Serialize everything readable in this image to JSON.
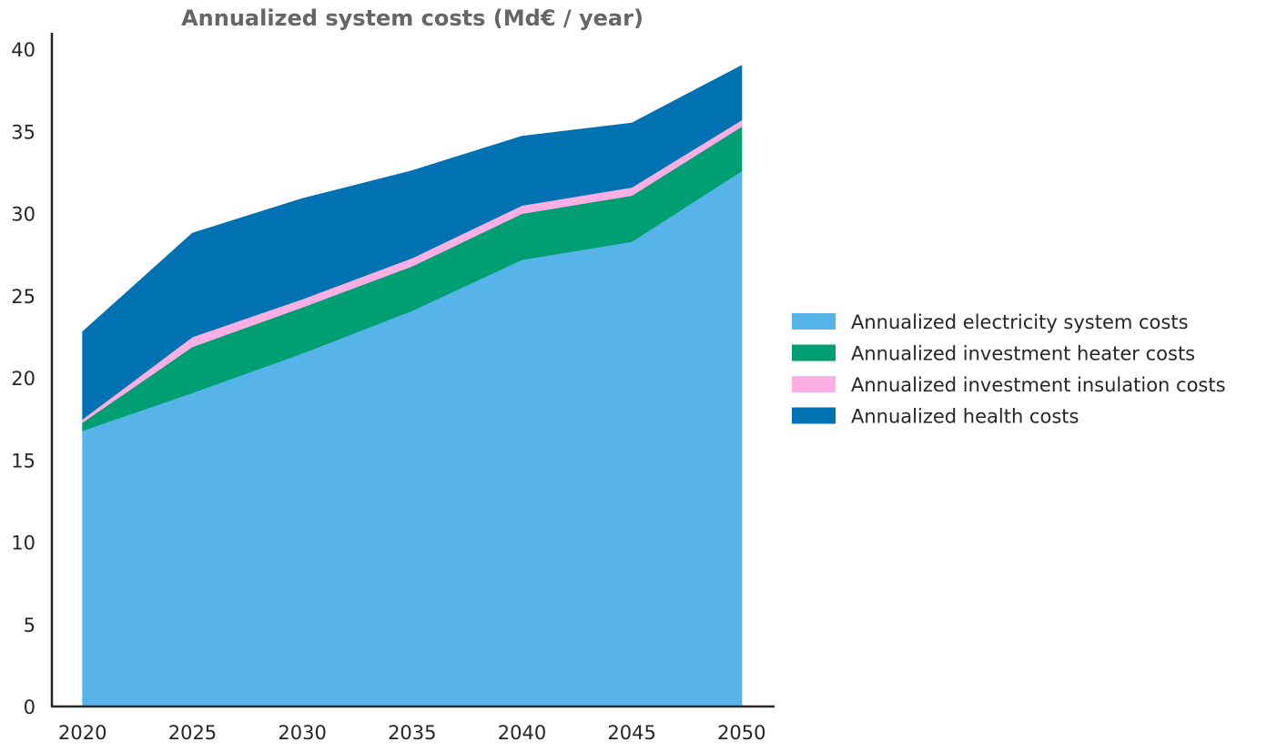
{
  "chart_data": {
    "type": "area",
    "stacked": true,
    "title": "Annualized system costs (Md€ / year)",
    "xlabel": "",
    "ylabel": "",
    "x": [
      2020,
      2025,
      2030,
      2035,
      2040,
      2045,
      2050
    ],
    "x_ticks": [
      "2020",
      "2025",
      "2030",
      "2035",
      "2040",
      "2045",
      "2050"
    ],
    "y_ticks": [
      "0",
      "5",
      "10",
      "15",
      "20",
      "25",
      "30",
      "35",
      "40"
    ],
    "xlim": [
      2018.6,
      2051.5
    ],
    "ylim": [
      0,
      41
    ],
    "grid": false,
    "legend_position": "center-right",
    "series": [
      {
        "name": "Annualized electricity system costs",
        "color": "#56B4E9",
        "values": [
          16.8,
          19.1,
          21.5,
          24.1,
          27.2,
          28.3,
          32.6
        ]
      },
      {
        "name": "Annualized investment heater costs",
        "color": "#009E73",
        "values": [
          0.5,
          2.8,
          2.8,
          2.7,
          2.8,
          2.8,
          2.7
        ]
      },
      {
        "name": "Annualized investment insulation costs",
        "color": "#FBAFE4",
        "values": [
          0.2,
          0.6,
          0.5,
          0.5,
          0.5,
          0.5,
          0.4
        ]
      },
      {
        "name": "Annualized health costs",
        "color": "#0072B2",
        "values": [
          5.3,
          6.3,
          6.1,
          5.3,
          4.2,
          3.9,
          3.3
        ]
      }
    ]
  }
}
